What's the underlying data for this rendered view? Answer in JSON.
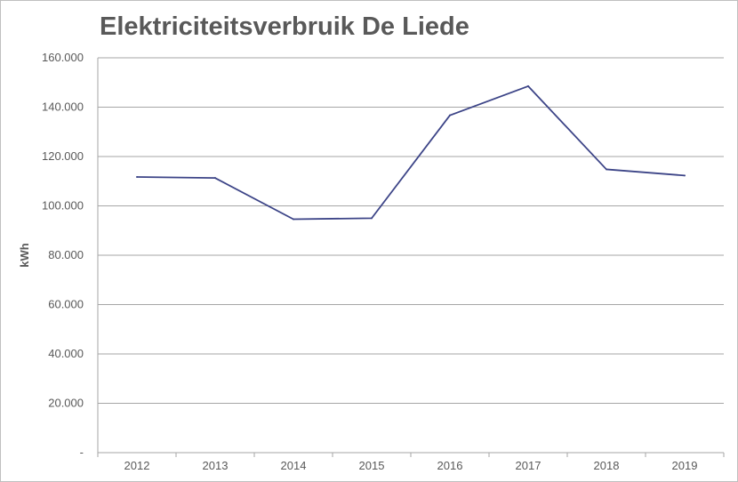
{
  "chart_data": {
    "type": "line",
    "title": "Elektriciteitsverbruik De Liede",
    "xlabel": "",
    "ylabel": "kWh",
    "categories": [
      "2012",
      "2013",
      "2014",
      "2015",
      "2016",
      "2017",
      "2018",
      "2019"
    ],
    "series": [
      {
        "values": [
          111700,
          111300,
          94600,
          95000,
          136700,
          148500,
          114800,
          112300
        ],
        "color": "#3c4487"
      }
    ],
    "ylim": [
      0,
      160000
    ],
    "yticks": [
      0,
      20000,
      40000,
      60000,
      80000,
      100000,
      120000,
      140000,
      160000
    ],
    "ytick_labels": [
      "-",
      "20.000",
      "40.000",
      "60.000",
      "80.000",
      "100.000",
      "120.000",
      "140.000",
      "160.000"
    ],
    "grid": true,
    "legend": "none"
  }
}
